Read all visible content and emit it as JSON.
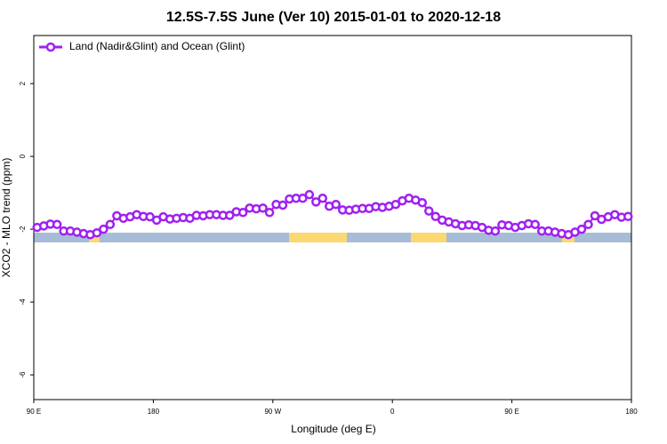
{
  "chart_data": {
    "type": "line",
    "title": "12.5S-7.5S June (Ver 10)   2015-01-01 to 2020-12-18",
    "xlabel": "Longitude (deg E)",
    "ylabel": "XCO2 - MLO trend (ppm)",
    "xlim": [
      90,
      540
    ],
    "xticks": [
      {
        "value": 90,
        "label": "90 E"
      },
      {
        "value": 180,
        "label": "180"
      },
      {
        "value": 270,
        "label": "90 W"
      },
      {
        "value": 360,
        "label": "0"
      },
      {
        "value": 450,
        "label": "90 E"
      },
      {
        "value": 540,
        "label": "180"
      }
    ],
    "ylim": [
      -6.68,
      3.32
    ],
    "yticks": [
      -6,
      -4,
      -2,
      0,
      2
    ],
    "legend": "top-left",
    "x": [
      92.5,
      97.5,
      102.5,
      107.5,
      112.5,
      117.5,
      122.5,
      127.5,
      132.5,
      137.5,
      142.5,
      147.5,
      152.5,
      157.5,
      162.5,
      167.5,
      172.5,
      177.5,
      182.5,
      187.5,
      192.5,
      197.5,
      202.5,
      207.5,
      212.5,
      217.5,
      222.5,
      227.5,
      232.5,
      237.5,
      242.5,
      247.5,
      252.5,
      257.5,
      262.5,
      267.5,
      272.5,
      277.5,
      282.5,
      287.5,
      292.5,
      297.5,
      302.5,
      307.5,
      312.5,
      317.5,
      322.5,
      327.5,
      332.5,
      337.5,
      342.5,
      347.5,
      352.5,
      357.5,
      362.5,
      367.5,
      372.5,
      377.5,
      382.5,
      387.5,
      392.5,
      397.5,
      402.5,
      407.5,
      412.5,
      417.5,
      422.5,
      427.5,
      432.5,
      437.5,
      442.5,
      447.5,
      452.5,
      457.5,
      462.5,
      467.5,
      472.5,
      477.5,
      482.5,
      487.5,
      492.5,
      497.5,
      502.5,
      507.5,
      512.5,
      517.5,
      522.5,
      527.5,
      532.5,
      537.5
    ],
    "series": [
      {
        "name": "Land (Nadir&Glint) and Ocean (Glint)",
        "color": "#a020f0",
        "values": [
          -1.95,
          -1.91,
          -1.86,
          -1.87,
          -2.05,
          -2.05,
          -2.08,
          -2.12,
          -2.15,
          -2.1,
          -2.0,
          -1.87,
          -1.63,
          -1.7,
          -1.66,
          -1.6,
          -1.65,
          -1.66,
          -1.75,
          -1.66,
          -1.72,
          -1.7,
          -1.68,
          -1.7,
          -1.62,
          -1.63,
          -1.6,
          -1.6,
          -1.62,
          -1.62,
          -1.52,
          -1.54,
          -1.42,
          -1.44,
          -1.42,
          -1.54,
          -1.32,
          -1.34,
          -1.17,
          -1.15,
          -1.15,
          -1.05,
          -1.25,
          -1.15,
          -1.37,
          -1.32,
          -1.47,
          -1.48,
          -1.45,
          -1.43,
          -1.43,
          -1.38,
          -1.4,
          -1.37,
          -1.32,
          -1.22,
          -1.15,
          -1.2,
          -1.27,
          -1.5,
          -1.65,
          -1.75,
          -1.8,
          -1.85,
          -1.9,
          -1.88,
          -1.9,
          -1.95,
          -2.03,
          -2.05,
          -1.88,
          -1.9,
          -1.95,
          -1.9,
          -1.85,
          -1.87,
          -2.05,
          -2.05,
          -2.08,
          -2.12,
          -2.15,
          -2.08,
          -2.0,
          -1.87,
          -1.63,
          -1.73,
          -1.66,
          -1.6,
          -1.67,
          -1.65
        ]
      }
    ]
  }
}
